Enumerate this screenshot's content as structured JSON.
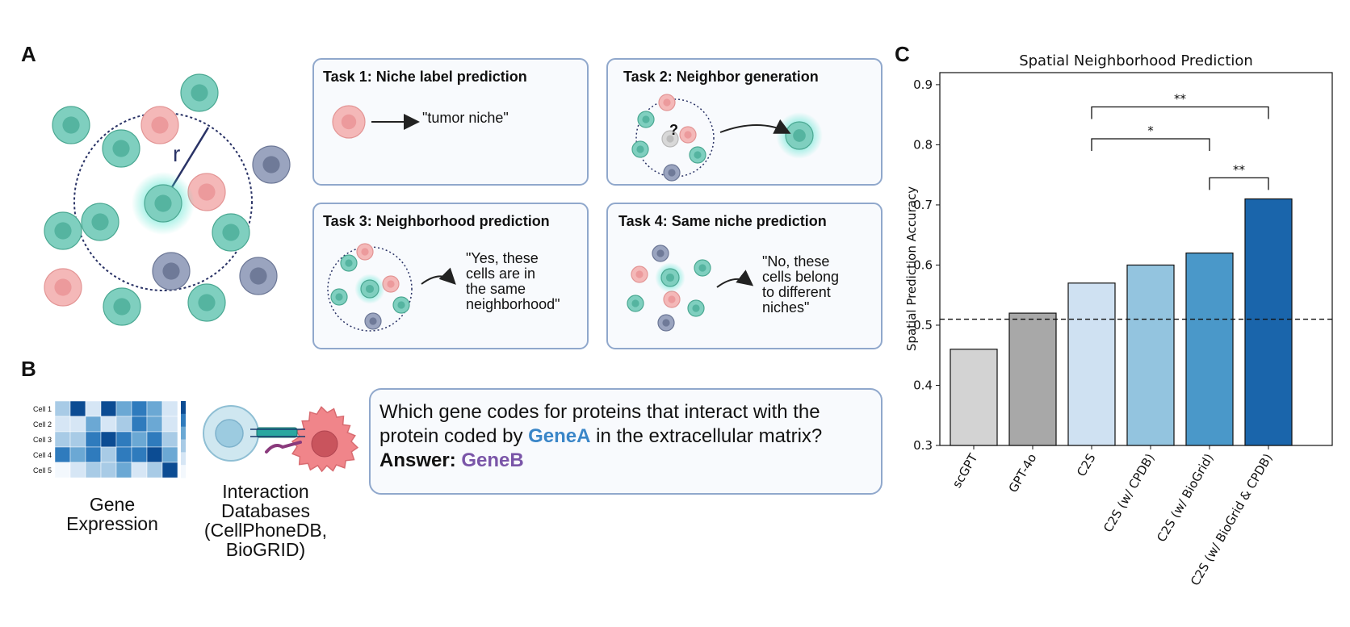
{
  "panels": {
    "a": "A",
    "b": "B",
    "c": "C"
  },
  "panel_a": {
    "radius_label": "r",
    "tasks": [
      {
        "title": "Task 1: Niche label prediction",
        "text": [
          "\"tumor niche\""
        ]
      },
      {
        "title": "Task 2: Neighbor generation",
        "text": [
          "?"
        ]
      },
      {
        "title": "Task 3: Neighborhood prediction",
        "text": [
          "\"Yes, these",
          "cells are in",
          "the same",
          "neighborhood\""
        ]
      },
      {
        "title": "Task 4: Same niche prediction",
        "text": [
          "\"No, these",
          "cells belong",
          "to different",
          "niches\""
        ]
      }
    ],
    "colors": {
      "teal": "#7fcfbf",
      "pink": "#f4b8b8",
      "slate": "#9aa4bf",
      "glow": "#3fe0c8"
    }
  },
  "panel_b": {
    "heatmap_rows": [
      "Cell 1",
      "Cell 2",
      "Cell 3",
      "Cell 4",
      "Cell 5"
    ],
    "gene_expression_label": [
      "Gene",
      "Expression"
    ],
    "interaction_label": [
      "Interaction",
      "Databases",
      "(CellPhoneDB,",
      "BioGRID)"
    ],
    "question": {
      "line1": "Which gene codes for proteins that interact with the",
      "line2_pre": "protein coded by ",
      "gene_a": "GeneA",
      "line2_post": " in the extracellular matrix?",
      "answer_label": "Answer: ",
      "gene_b": "GeneB"
    },
    "colors": {
      "gene_a": "#3a86c8",
      "gene_b": "#7a55a8"
    }
  },
  "chart_data": {
    "type": "bar",
    "title": "Spatial Neighborhood Prediction",
    "ylabel": "Spatial Prediction Accuracy",
    "xlabel": "",
    "categories": [
      "scGPT",
      "GPT-4o",
      "C2S",
      "C2S (w/ CPDB)",
      "C2S (w/ BioGrid)",
      "C2S (w/ BioGrid & CPDB)"
    ],
    "values": [
      0.46,
      0.52,
      0.57,
      0.6,
      0.62,
      0.71
    ],
    "colors": [
      "#d3d3d3",
      "#a8a8a8",
      "#cfe1f2",
      "#93c4df",
      "#4a98c9",
      "#1a65ab"
    ],
    "ylim": [
      0.3,
      0.92
    ],
    "yticks": [
      0.3,
      0.4,
      0.5,
      0.6,
      0.7,
      0.8,
      0.9
    ],
    "baseline": 0.51,
    "grid": false,
    "significance": [
      {
        "from": 2,
        "to": 5,
        "label": "**",
        "level": 0.863
      },
      {
        "from": 2,
        "to": 4,
        "label": "*",
        "level": 0.81
      },
      {
        "from": 4,
        "to": 5,
        "label": "**",
        "level": 0.745
      }
    ]
  }
}
